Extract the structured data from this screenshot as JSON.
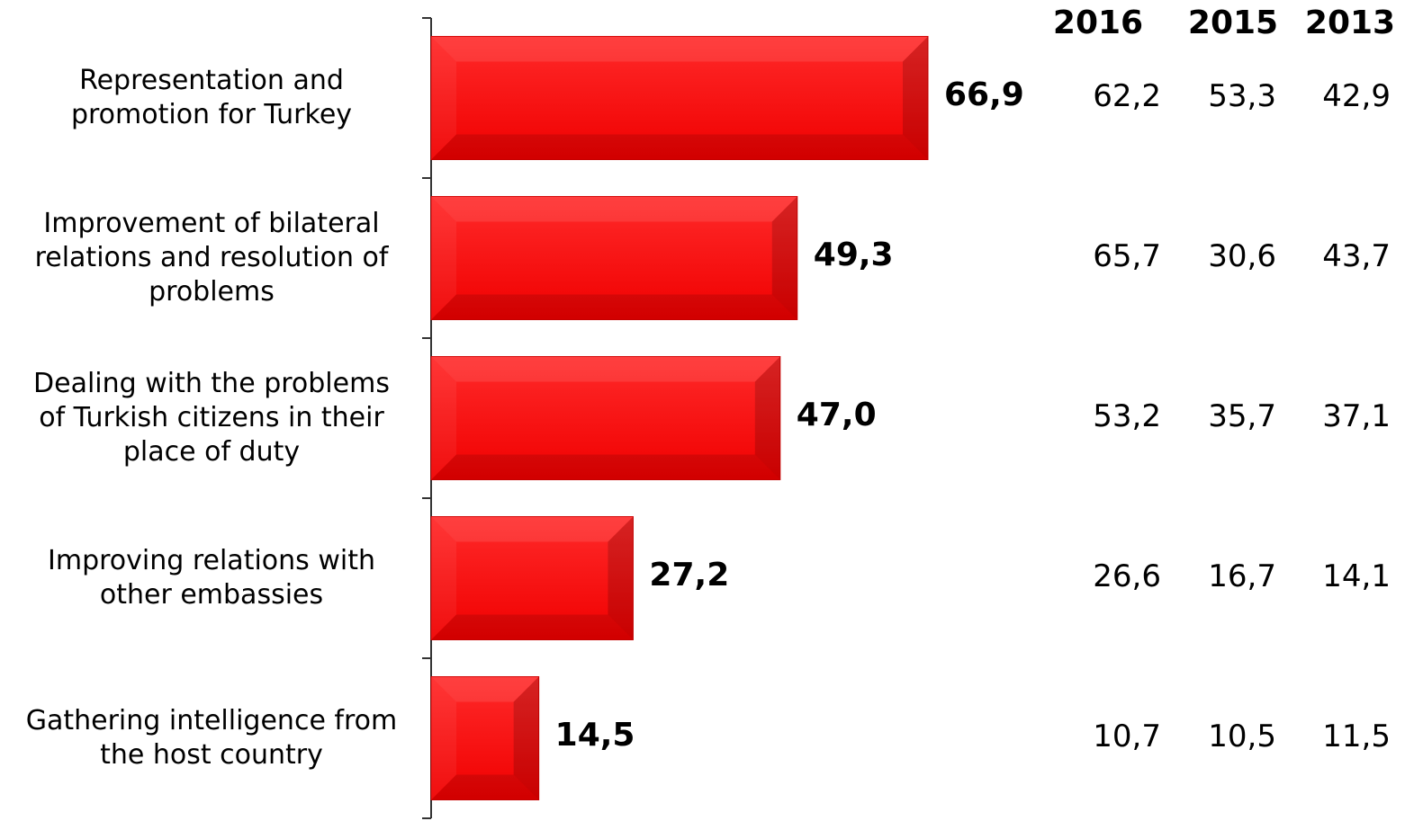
{
  "colors": {
    "bar": "#ff0a0a",
    "bar_dark": "#d20000",
    "axis": "#333333"
  },
  "chart_data": {
    "type": "bar",
    "orientation": "horizontal",
    "categories": [
      "Representation and\npromotion for Turkey",
      "Improvement of bilateral\nrelations and resolution of\nproblems",
      "Dealing with the problems\nof Turkish citizens in their\nplace of duty",
      "Improving relations with\nother embassies",
      "Gathering intelligence from\nthe host country"
    ],
    "values": [
      66.9,
      49.3,
      47.0,
      27.2,
      14.5
    ],
    "value_labels": [
      "66,9",
      "49,3",
      "47,0",
      "27,2",
      "14,5"
    ],
    "table": {
      "headers": [
        "2016",
        "2015",
        "2013"
      ],
      "rows": [
        [
          "62,2",
          "53,3",
          "42,9"
        ],
        [
          "65,7",
          "30,6",
          "43,7"
        ],
        [
          "53,2",
          "35,7",
          "37,1"
        ],
        [
          "26,6",
          "16,7",
          "14,1"
        ],
        [
          "10,7",
          "10,5",
          "11,5"
        ]
      ]
    },
    "xlim": [
      0,
      100
    ],
    "grid": false
  }
}
